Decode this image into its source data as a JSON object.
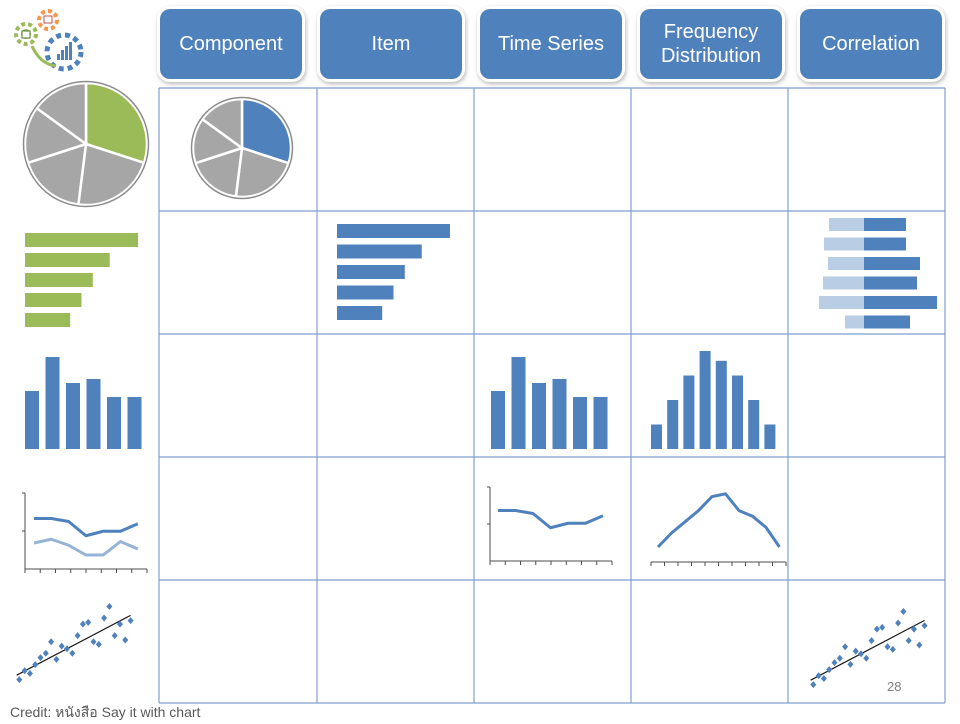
{
  "headers": [
    "Component",
    "Item",
    "Time Series",
    "Frequency\nDistribution",
    "Correlation"
  ],
  "credit": "Credit: หนังสือ  Say it with chart",
  "page_number": "28",
  "colors": {
    "blue": "#4f81bd",
    "green": "#9bbb59",
    "gray": "#a6a6a6",
    "light_blue": "#b9cde5",
    "line_dark": "#4f81bd",
    "line_light": "#95b3d7",
    "grid": "#7f9fcf"
  },
  "logo": {
    "icon": "gears-chart-logo-icon"
  },
  "chart_data": [
    {
      "id": "component",
      "type": "pie",
      "values": [
        30,
        22,
        18,
        15,
        15
      ]
    },
    {
      "id": "item",
      "type": "bar",
      "orientation": "horizontal",
      "values": [
        100,
        75,
        60,
        50,
        40
      ]
    },
    {
      "id": "time_series_bar",
      "type": "bar",
      "values": [
        58,
        92,
        66,
        70,
        52,
        52
      ]
    },
    {
      "id": "frequency_distribution_bar",
      "type": "bar",
      "values": [
        1,
        2,
        3,
        4,
        3.6,
        3,
        2,
        1
      ]
    },
    {
      "id": "correlation_paired_bar",
      "type": "bar",
      "orientation": "horizontal",
      "series": [
        {
          "values": [
            3.5,
            4,
            3.6,
            4.1,
            4.5,
            1.9
          ]
        },
        {
          "values": [
            4.2,
            4.2,
            5.6,
            5.3,
            7.3,
            4.6
          ]
        }
      ]
    },
    {
      "id": "time_series_line",
      "type": "line",
      "series": [
        {
          "values": [
            70,
            70,
            66,
            47,
            53,
            53,
            63
          ]
        },
        {
          "values": [
            48,
            53,
            45,
            32,
            32,
            50,
            40
          ]
        }
      ]
    },
    {
      "id": "frequency_distribution_line",
      "type": "line",
      "values": [
        1,
        2,
        2.8,
        3.6,
        4.6,
        4.8,
        3.6,
        3.2,
        2.4,
        1
      ]
    },
    {
      "id": "correlation_scatter",
      "type": "scatter",
      "x": [
        1,
        2,
        3,
        4,
        5,
        6,
        7,
        8,
        9,
        10,
        11,
        12,
        13,
        14,
        15,
        16,
        17,
        18,
        19,
        20,
        21,
        22
      ],
      "y": [
        0.5,
        1.5,
        1.2,
        2.2,
        3.0,
        3.5,
        4.8,
        2.8,
        4.3,
        4.0,
        3.5,
        5.5,
        6.8,
        7.0,
        4.8,
        4.5,
        7.5,
        8.8,
        5.5,
        6.8,
        5.0,
        7.2
      ],
      "trendline": [
        [
          0.5,
          1.0
        ],
        [
          22,
          7.8
        ]
      ]
    }
  ]
}
